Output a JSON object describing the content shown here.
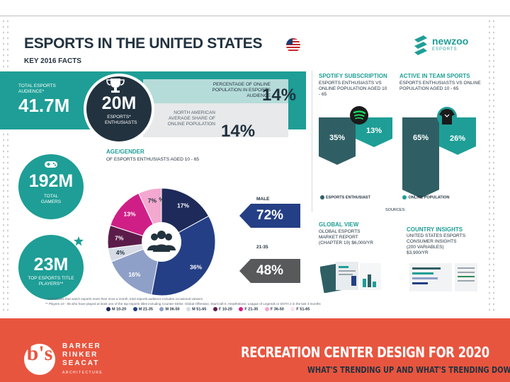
{
  "infographic": {
    "title": "ESPORTS IN THE UNITED STATES",
    "subtitle": "KEY 2016 FACTS",
    "brand": {
      "name": "newzoo",
      "tagline": "ESPORTS"
    },
    "audience": {
      "label": "TOTAL ESPORTS AUDIENCE*",
      "value": "41.7M"
    },
    "enthusiasts": {
      "value": "20M",
      "label": "ESPORTS* ENTHUSIASTS"
    },
    "share_online": {
      "label": "PERCENTAGE OF ONLINE POPULATION IN ESPORTS AUDIENCE",
      "value": "14%"
    },
    "share_na": {
      "label": "NORTH AMERICAN AVERAGE SHARE OF ONLINE POPULATION",
      "value": "14%"
    },
    "gamers": {
      "value": "192M",
      "label": "TOTAL GAMERS"
    },
    "players": {
      "value": "23M",
      "label": "TOP ESPORTS TITLE PLAYERS**"
    },
    "spotify": {
      "title": "SPOTIFY SUBSCRIPTION",
      "desc": "ESPORTS ENTHUSIASTS VS ONLINE POPULATION AGED 10 - 65"
    },
    "team": {
      "title": "ACTIVE IN TEAM SPORTS",
      "desc": "ESPORTS ENTHUSIASTS VS ONLINE POPULATION AGED 10 - 65"
    },
    "bar_legend": {
      "enthusiasts": "ESPORTS ENTHUSIAST",
      "online": "ONLINE POPULATION"
    },
    "sources_label": "Sources:",
    "age_gender": {
      "title": "AGE/GENDER",
      "desc": "OF ESPORTS ENTHUSIASTS AGED 10 - 65"
    },
    "male": {
      "label": "MALE",
      "value": "72%"
    },
    "age_21_35": {
      "label": "21-35",
      "value": "48%"
    },
    "global_view": {
      "title": "GLOBAL VIEW",
      "desc": "GLOBAL ESPORTS MARKET REPORT (CHAPTER 10) $6,000/YR"
    },
    "country": {
      "title": "COUNTRY INSIGHTS",
      "desc": "UNITED STATES ESPORTS CONSUMER INSIGHTS (200 VARIABLES) $3,900/YR"
    },
    "footnote1": "* Enthusiasts that watch esports more than once a month; total esports audience includes occasional viewers",
    "footnote2": "** Players 10 - 65 who have played at least one of the top esports titles including Counter-Strike: Global Offensive, StarCraft II, Hearthstone, League of Legends or DOTA 2 in the last 3 months"
  },
  "colors": {
    "teal": "#1e9e96",
    "dark_teal": "#2f5f64",
    "navy": "#22323f",
    "accent": "#e8553f"
  },
  "chart_data": [
    {
      "type": "pie",
      "title": "AGE/GENDER",
      "categories": [
        "M 10-20",
        "M 21-35",
        "M 36-50",
        "M 51-65",
        "F 10-20",
        "F 21-35",
        "F 36-50",
        "F 51-65"
      ],
      "values": [
        17,
        36,
        16,
        4,
        7,
        13,
        7,
        0
      ],
      "labels": [
        "17%",
        "36%",
        "16%",
        "4%",
        "7%",
        "13%",
        "7%",
        "%"
      ],
      "colors": [
        "#1d2a5a",
        "#243f85",
        "#8fa0c8",
        "#d7dbe6",
        "#5c1c4a",
        "#cf1f86",
        "#f3a8cf",
        "#fbe0ee"
      ]
    },
    {
      "type": "bar",
      "title": "SPOTIFY SUBSCRIPTION",
      "categories": [
        "ESPORTS ENTHUSIAST",
        "ONLINE POPULATION"
      ],
      "values": [
        35,
        13
      ],
      "labels": [
        "35%",
        "13%"
      ]
    },
    {
      "type": "bar",
      "title": "ACTIVE IN TEAM SPORTS",
      "categories": [
        "ESPORTS ENTHUSIAST",
        "ONLINE POPULATION"
      ],
      "values": [
        65,
        26
      ],
      "labels": [
        "65%",
        "26%"
      ]
    }
  ],
  "footer": {
    "title": "RECREATION CENTER DESIGN FOR 2020",
    "subtitle": "WHAT'S TRENDING UP AND WHAT'S TRENDING DOWN",
    "logo_initials": "b's",
    "firm_lines": [
      "BARKER",
      "RINKER",
      "SEACAT"
    ],
    "firm_sub": "ARCHITECTURE"
  }
}
